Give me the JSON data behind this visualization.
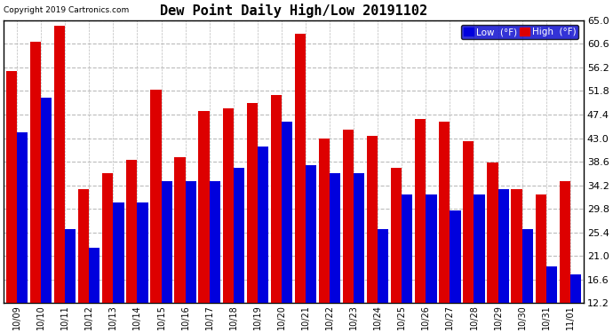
{
  "title": "Dew Point Daily High/Low 20191102",
  "copyright": "Copyright 2019 Cartronics.com",
  "dates": [
    "10/09",
    "10/10",
    "10/11",
    "10/12",
    "10/13",
    "10/14",
    "10/15",
    "10/16",
    "10/17",
    "10/18",
    "10/19",
    "10/20",
    "10/21",
    "10/22",
    "10/23",
    "10/24",
    "10/25",
    "10/26",
    "10/27",
    "10/28",
    "10/29",
    "10/30",
    "10/31",
    "11/01"
  ],
  "low_values": [
    44.0,
    50.5,
    26.0,
    22.5,
    31.0,
    31.0,
    35.0,
    35.0,
    35.0,
    37.5,
    41.5,
    46.0,
    38.0,
    36.5,
    36.5,
    26.0,
    32.5,
    32.5,
    29.5,
    32.5,
    33.5,
    26.0,
    19.0,
    17.5
  ],
  "high_values": [
    55.5,
    61.0,
    64.0,
    33.5,
    36.5,
    39.0,
    52.0,
    39.5,
    48.0,
    48.5,
    49.5,
    51.0,
    62.5,
    43.0,
    44.5,
    43.5,
    37.5,
    46.5,
    46.0,
    42.5,
    38.5,
    33.5,
    32.5,
    35.0
  ],
  "low_color": "#0000dd",
  "high_color": "#dd0000",
  "bg_color": "#ffffff",
  "grid_color": "#bbbbbb",
  "ymin": 12.2,
  "ymax": 65.0,
  "yticks": [
    12.2,
    16.6,
    21.0,
    25.4,
    29.8,
    34.2,
    38.6,
    43.0,
    47.4,
    51.8,
    56.2,
    60.6,
    65.0
  ],
  "bar_width": 0.45,
  "legend_bg": "#0000cc",
  "legend_high_bg": "#cc0000"
}
